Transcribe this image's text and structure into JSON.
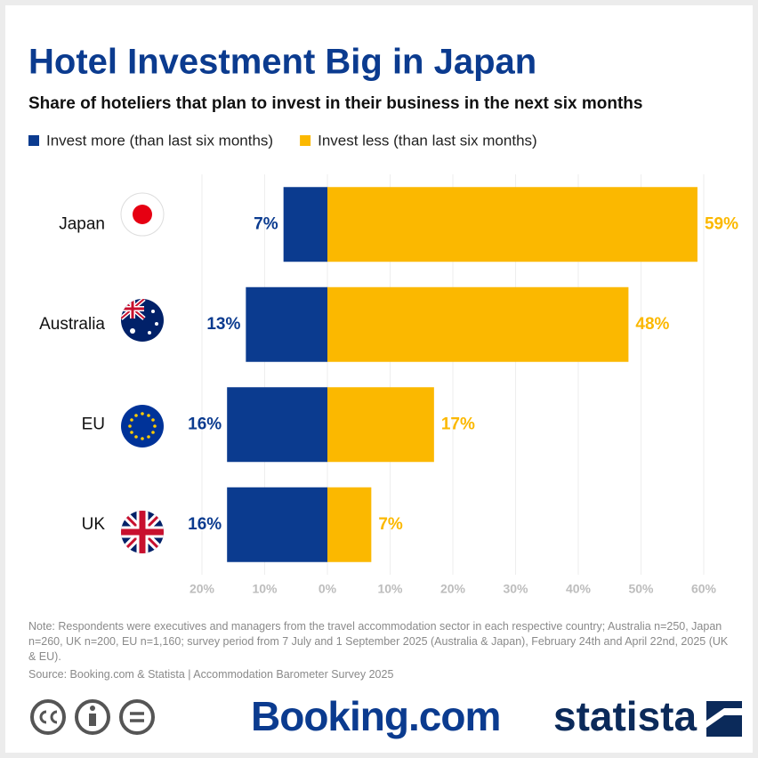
{
  "chart_data": {
    "type": "diverging_bar",
    "title": "Hotel Investment Big in Japan",
    "subtitle": "Share of hoteliers that plan to invest in their business in the next six months",
    "categories": [
      "Japan",
      "Australia",
      "EU",
      "UK"
    ],
    "series": [
      {
        "name": "Invest more (than last six months)",
        "color": "#0b3b8f",
        "values": [
          -7,
          -13,
          -16,
          -16
        ],
        "value_labels": [
          "7%",
          "13%",
          "16%",
          "16%"
        ]
      },
      {
        "name": "Invest less (than last six months)",
        "color": "#fbb800",
        "values": [
          59,
          48,
          17,
          7
        ],
        "value_labels": [
          "59%",
          "48%",
          "17%",
          "7%"
        ]
      }
    ],
    "xlim": [
      -20,
      60
    ],
    "xticks": [
      {
        "value": -20,
        "label": "20%"
      },
      {
        "value": -10,
        "label": "10%"
      },
      {
        "value": 0,
        "label": "0%"
      },
      {
        "value": 10,
        "label": "10%"
      },
      {
        "value": 20,
        "label": "20%"
      },
      {
        "value": 30,
        "label": "30%"
      },
      {
        "value": 40,
        "label": "40%"
      },
      {
        "value": 50,
        "label": "50%"
      },
      {
        "value": 60,
        "label": "60%"
      }
    ],
    "grid": true,
    "legend": "top",
    "note": "Note: Respondents were executives and managers from the travel accommodation sector in each respective country; Australia n=250, Japan n=260, UK n=200, EU n=1,160; survey period from 7 July and 1 September 2025 (Australia & Japan), February 24th and April 22nd, 2025 (UK & EU).",
    "source": "Source: Booking.com & Statista | Accommodation Barometer Survey 2025",
    "logos": [
      "Booking.com",
      "statista"
    ]
  }
}
